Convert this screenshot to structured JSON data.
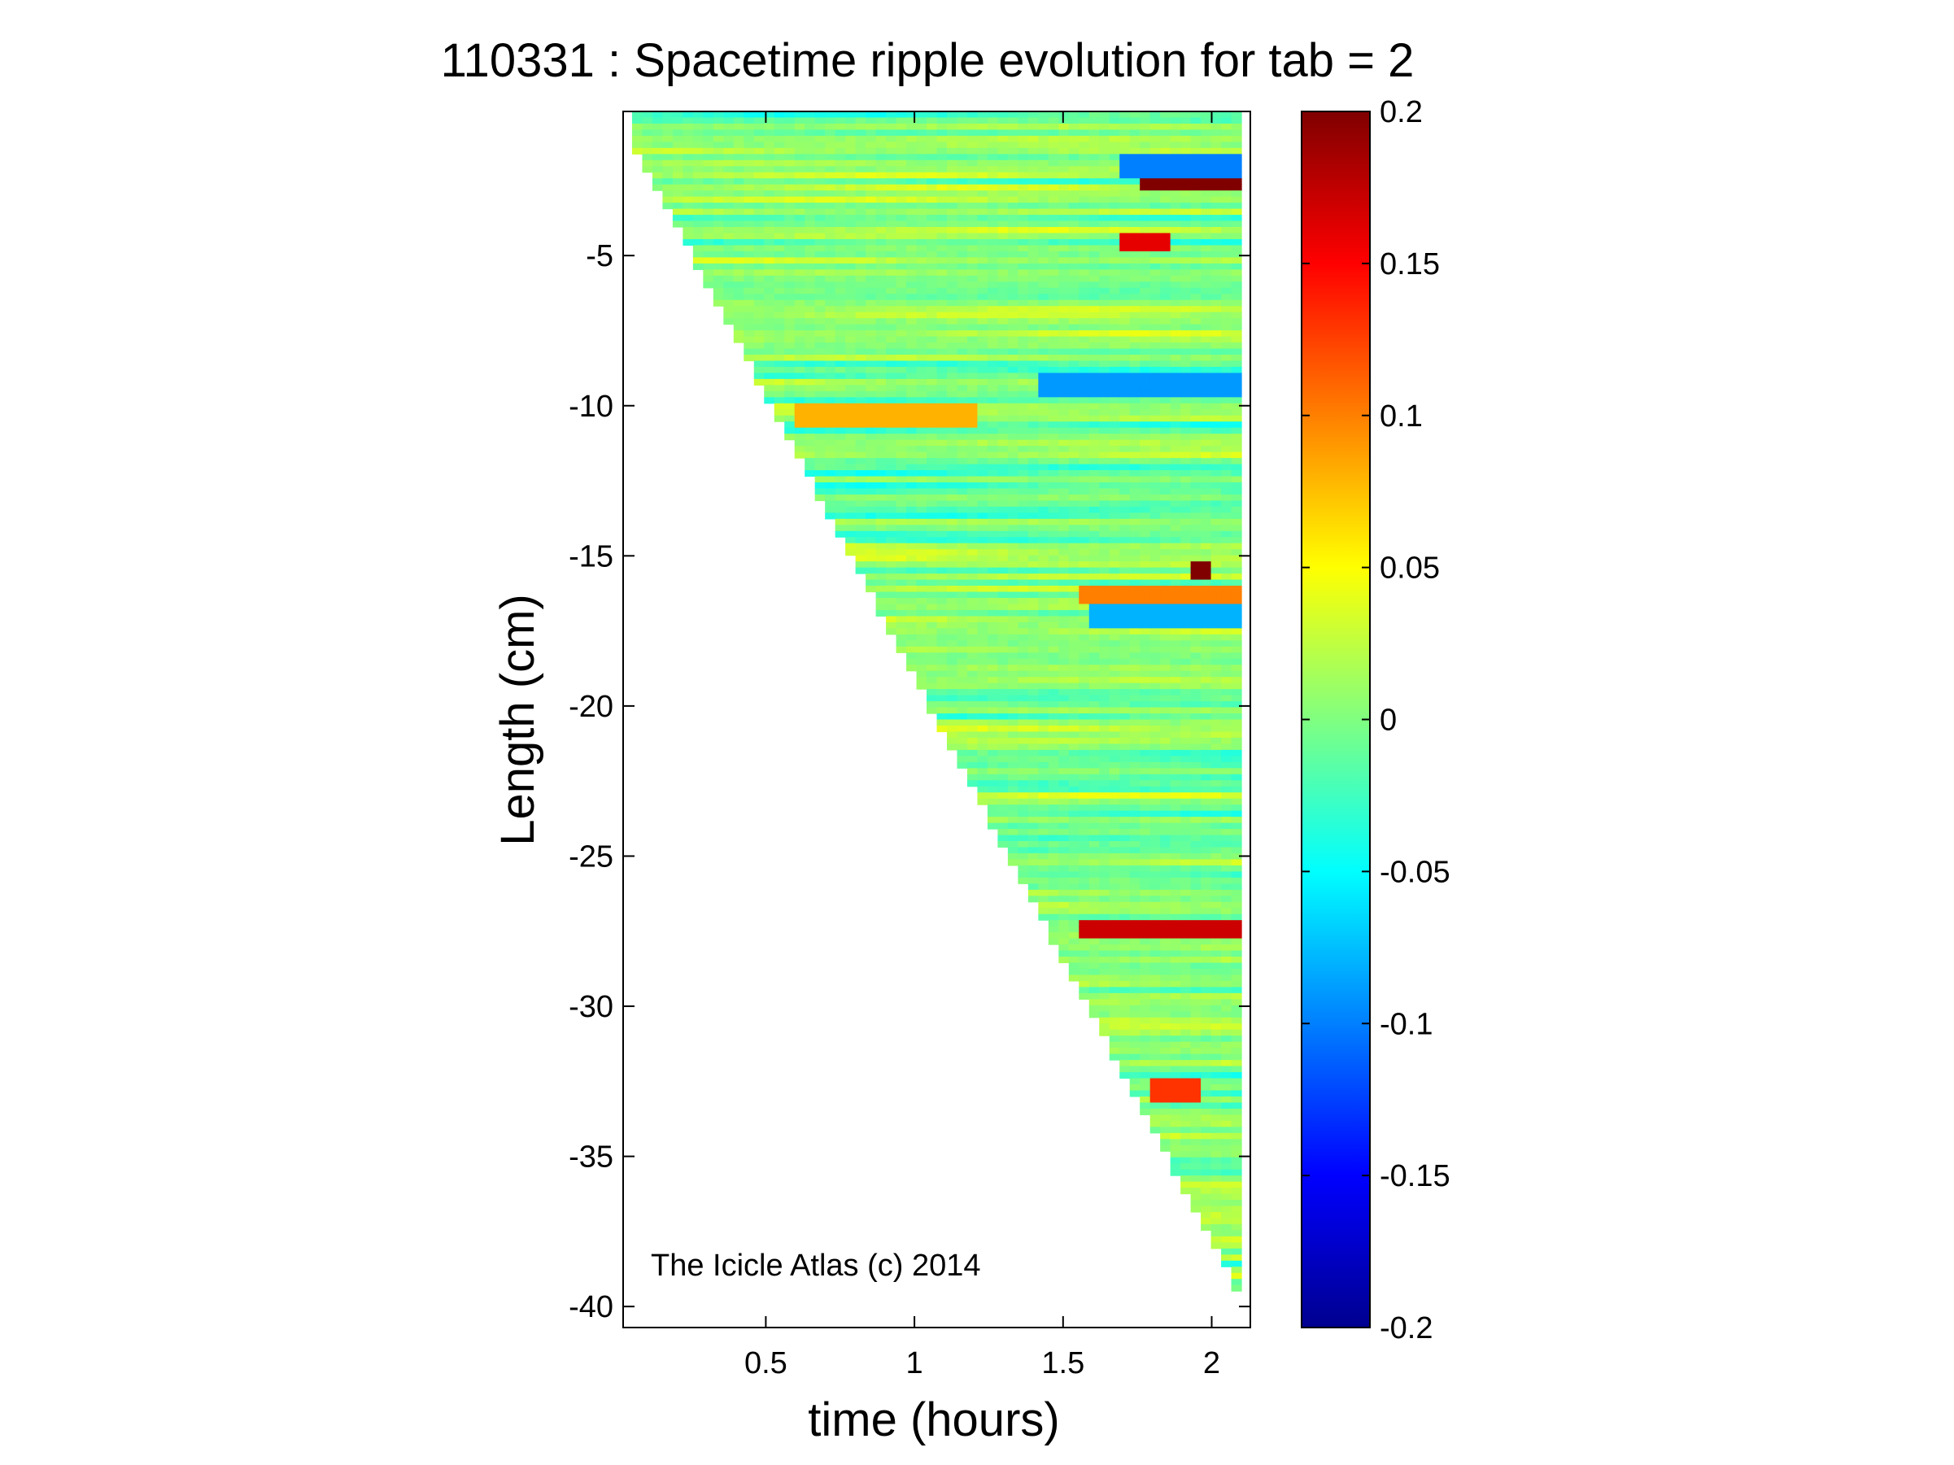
{
  "chart_data": {
    "type": "heatmap",
    "title": "110331 : Spacetime ripple evolution for tab = 2",
    "xlabel": "time (hours)",
    "ylabel": "Length (cm)",
    "xlim": [
      0.02,
      2.13
    ],
    "ylim": [
      -40.7,
      -0.2
    ],
    "x_ticks": [
      0.5,
      1,
      1.5,
      2
    ],
    "x_tick_labels": [
      "0.5",
      "1",
      "1.5",
      "2"
    ],
    "y_ticks": [
      -5,
      -10,
      -15,
      -20,
      -25,
      -30,
      -35,
      -40
    ],
    "y_tick_labels": [
      "-5",
      "-10",
      "-15",
      "-20",
      "-25",
      "-30",
      "-35",
      "-40"
    ],
    "colorbar": {
      "colormap": "jet",
      "clim": [
        -0.2,
        0.2
      ],
      "ticks": [
        0.2,
        0.15,
        0.1,
        0.05,
        0,
        -0.05,
        -0.1,
        -0.15,
        -0.2
      ],
      "tick_labels": [
        "0.2",
        "0.15",
        "0.1",
        "0.05",
        "0",
        "-0.05",
        "-0.1",
        "-0.15",
        "-0.2"
      ]
    },
    "data_extent": {
      "description": "Data fill a triangular region; the upper icicle tip grows with time.",
      "tip_length_at_start_cm": -1.0,
      "tip_length_at_end_cm": -39.5,
      "start_time_hours": 0.05,
      "end_time_hours": 2.1
    },
    "features": [
      {
        "time_from": 1.75,
        "time_to": 2.1,
        "length_cm": -2.5,
        "value": 0.2
      },
      {
        "time_from": 1.7,
        "time_to": 1.85,
        "length_cm": -4.5,
        "value": 0.16
      },
      {
        "time_from": 1.92,
        "time_to": 2.0,
        "length_cm": -15.5,
        "value": 0.2
      },
      {
        "time_from": 1.55,
        "time_to": 2.1,
        "length_cm": -27.4,
        "value": 0.17
      },
      {
        "time_from": 1.8,
        "time_to": 1.95,
        "length_cm": -32.8,
        "value": 0.13
      },
      {
        "time_from": 1.55,
        "time_to": 2.1,
        "length_cm": -16.3,
        "value": 0.1
      },
      {
        "time_from": 0.6,
        "time_to": 1.2,
        "length_cm": -10.3,
        "value": 0.08
      },
      {
        "time_from": 1.4,
        "time_to": 2.1,
        "length_cm": -9.3,
        "value": -0.09
      },
      {
        "time_from": 1.6,
        "time_to": 2.1,
        "length_cm": -17.0,
        "value": -0.08
      },
      {
        "time_from": 1.7,
        "time_to": 2.1,
        "length_cm": -2.0,
        "value": -0.1
      }
    ]
  },
  "watermark": "The Icicle Atlas (c) 2014"
}
